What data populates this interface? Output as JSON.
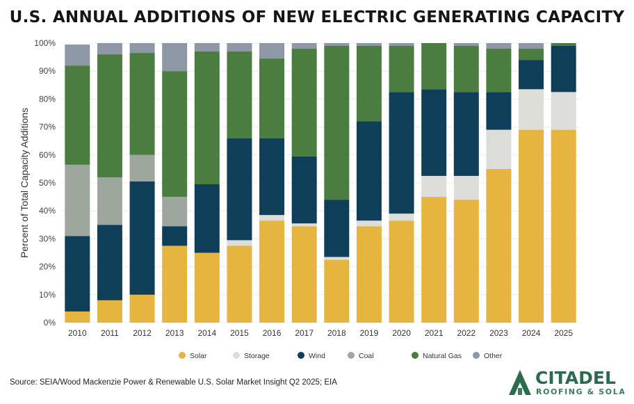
{
  "chart_data": {
    "type": "bar",
    "stacked": true,
    "title": "U.S. ANNUAL ADDITIONS OF NEW ELECTRIC GENERATING CAPACITY",
    "xlabel": "",
    "ylabel": "Percent of Total Capacity Additions",
    "ylim": [
      0,
      100
    ],
    "yticks": [
      "0%",
      "10%",
      "20%",
      "30%",
      "40%",
      "50%",
      "60%",
      "70%",
      "80%",
      "90%",
      "100%"
    ],
    "grid": true,
    "legend_position": "bottom",
    "categories": [
      "2010",
      "2011",
      "2012",
      "2013",
      "2014",
      "2015",
      "2016",
      "2017",
      "2018",
      "2019",
      "2020",
      "2021",
      "2022",
      "2023",
      "2024",
      "2025"
    ],
    "series": [
      {
        "name": "Solar",
        "color": "#E5B53F",
        "values": [
          4,
          8,
          10,
          27.5,
          25,
          27.5,
          36.5,
          34.5,
          22.5,
          34.5,
          36.5,
          45,
          44,
          55,
          69,
          69
        ]
      },
      {
        "name": "Storage",
        "color": "#DDDDD9",
        "values": [
          0,
          0,
          0,
          0,
          0,
          2,
          2,
          1,
          1,
          2,
          2.5,
          7.5,
          8.5,
          14,
          14.5,
          13.5
        ]
      },
      {
        "name": "Wind",
        "color": "#0F3E59",
        "values": [
          27,
          27,
          40.5,
          7,
          24.5,
          36.5,
          27.5,
          24,
          20.5,
          35.5,
          43.5,
          31,
          30,
          13.5,
          10.5,
          16.5
        ]
      },
      {
        "name": "Coal",
        "color": "#9EA79E",
        "values": [
          25.5,
          17,
          9.5,
          10.5,
          0,
          0,
          0,
          0,
          0,
          0,
          0,
          0,
          0,
          0,
          0,
          0
        ]
      },
      {
        "name": "Natural Gas",
        "color": "#4A7D3F",
        "values": [
          35.5,
          44,
          36.5,
          45,
          47.5,
          31,
          28.5,
          38.5,
          55,
          27,
          16.5,
          16.5,
          16.5,
          15.5,
          4,
          1
        ]
      },
      {
        "name": "Other",
        "color": "#8D97A5",
        "values": [
          7.5,
          4,
          3.5,
          10,
          3,
          3,
          5.5,
          2,
          1,
          1,
          1,
          0,
          1,
          2,
          2,
          0
        ]
      }
    ]
  },
  "source_text": "Source: SEIA/Wood Mackenzie Power & Renewable U.S. Solar Market Insight Q2 2025; EIA",
  "logo": {
    "name": "CITADEL",
    "tagline": "ROOFING & SOLAR",
    "brand_color": "#2B6B4F",
    "accent_color": "#3A7E58"
  }
}
